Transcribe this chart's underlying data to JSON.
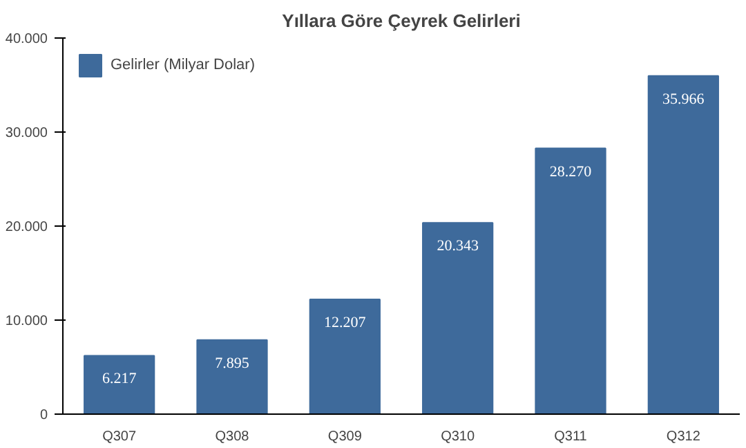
{
  "chart_data": {
    "type": "bar",
    "title": "Yıllara Göre Çeyrek Gelirleri",
    "categories": [
      "Q307",
      "Q308",
      "Q309",
      "Q310",
      "Q311",
      "Q312"
    ],
    "series": [
      {
        "name": "Gelirler (Milyar Dolar)",
        "color": "#3e6a9b",
        "values": [
          6217,
          7895,
          12207,
          20343,
          28270,
          35966
        ],
        "value_labels": [
          "6.217",
          "7.895",
          "12.207",
          "20.343",
          "28.270",
          "35.966"
        ]
      }
    ],
    "ylim": [
      0,
      40000
    ],
    "yticks": [
      0,
      {
        "value": 10000,
        "label": "10.000"
      },
      {
        "value": 20000,
        "label": "20.000"
      },
      {
        "value": 30000,
        "label": "30.000"
      },
      {
        "value": 40000,
        "label": "40.000"
      }
    ],
    "grid": false,
    "legend": "top left"
  }
}
